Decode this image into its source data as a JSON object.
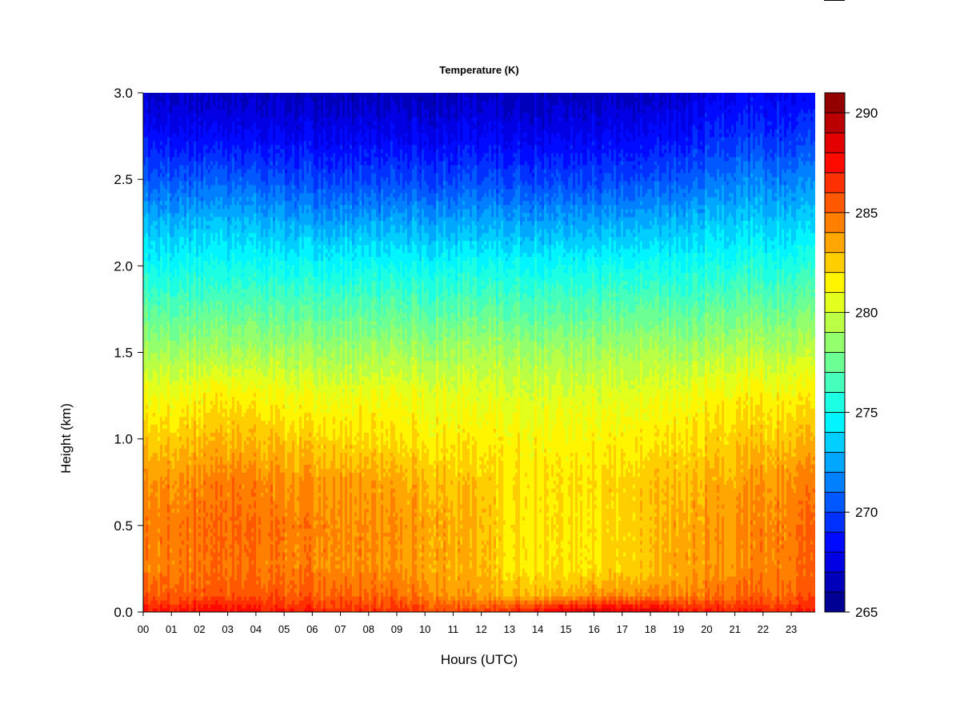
{
  "chart_data": {
    "type": "heatmap",
    "title": "Temperature (K)",
    "xlabel": "Hours (UTC)",
    "ylabel": "Height (km)",
    "x_ticks": [
      "00",
      "01",
      "02",
      "03",
      "04",
      "05",
      "06",
      "07",
      "08",
      "09",
      "10",
      "11",
      "12",
      "13",
      "14",
      "15",
      "16",
      "17",
      "18",
      "19",
      "20",
      "21",
      "22",
      "23"
    ],
    "xlim": [
      0,
      23.85
    ],
    "y_ticks": [
      "0.0",
      "0.5",
      "1.0",
      "1.5",
      "2.0",
      "2.5",
      "3.0"
    ],
    "ylim": [
      0,
      3.0
    ],
    "colorbar": {
      "ticks": [
        "265",
        "270",
        "275",
        "280",
        "285",
        "290"
      ],
      "range": [
        265,
        291
      ],
      "levels": [
        265,
        266,
        267,
        268,
        269,
        270,
        271,
        272,
        273,
        274,
        275,
        276,
        277,
        278,
        279,
        280,
        281,
        282,
        283,
        284,
        285,
        286,
        287,
        288,
        289,
        290,
        291
      ]
    },
    "colormap": "jet",
    "description_hours": [
      0,
      3,
      6,
      9,
      12,
      13,
      15,
      16,
      18,
      19,
      21,
      23.8
    ],
    "profiles": {
      "heights_km": [
        0.0,
        0.1,
        0.25,
        0.5,
        0.75,
        1.0,
        1.25,
        1.5,
        1.75,
        2.0,
        2.25,
        2.5,
        2.75,
        3.0
      ],
      "temps_K": [
        [
          287.5,
          285.5,
          284.5,
          284.5,
          284.0,
          282.5,
          281.0,
          279.0,
          277.0,
          275.0,
          273.0,
          270.5,
          268.5,
          267.0
        ],
        [
          287.5,
          285.5,
          284.8,
          285.0,
          284.5,
          283.0,
          281.5,
          279.0,
          277.0,
          275.0,
          273.0,
          270.5,
          268.0,
          266.5
        ],
        [
          287.0,
          285.5,
          284.5,
          284.5,
          284.0,
          282.5,
          281.0,
          279.0,
          277.0,
          275.0,
          272.5,
          270.0,
          268.0,
          266.5
        ],
        [
          286.5,
          285.0,
          284.0,
          284.0,
          283.5,
          282.0,
          281.0,
          279.0,
          277.0,
          275.0,
          272.5,
          270.0,
          268.0,
          266.5
        ],
        [
          286.0,
          283.5,
          283.0,
          283.0,
          282.5,
          281.5,
          280.5,
          279.0,
          277.0,
          275.0,
          272.5,
          270.0,
          268.0,
          266.5
        ],
        [
          287.0,
          283.0,
          282.0,
          282.0,
          282.0,
          281.5,
          280.5,
          279.0,
          277.0,
          275.0,
          272.5,
          270.0,
          268.0,
          266.5
        ],
        [
          288.5,
          283.5,
          282.0,
          282.0,
          282.0,
          281.5,
          280.5,
          279.0,
          277.0,
          275.0,
          272.5,
          270.0,
          268.0,
          266.5
        ],
        [
          289.0,
          284.0,
          282.0,
          282.0,
          282.0,
          281.5,
          280.5,
          279.0,
          277.0,
          275.0,
          272.5,
          270.0,
          268.0,
          266.5
        ],
        [
          288.5,
          284.0,
          282.5,
          282.5,
          282.5,
          281.5,
          280.5,
          279.0,
          277.0,
          275.0,
          272.5,
          270.0,
          268.0,
          266.5
        ],
        [
          287.5,
          284.5,
          283.5,
          283.5,
          283.0,
          282.0,
          281.0,
          279.0,
          277.0,
          275.0,
          273.0,
          270.5,
          268.5,
          267.0
        ],
        [
          287.0,
          285.0,
          284.0,
          284.0,
          283.5,
          282.5,
          281.5,
          279.5,
          277.5,
          275.5,
          273.5,
          271.5,
          269.5,
          268.0
        ],
        [
          287.0,
          285.5,
          285.0,
          285.0,
          284.5,
          283.0,
          281.5,
          279.5,
          277.5,
          275.5,
          273.5,
          271.5,
          269.5,
          268.0
        ]
      ]
    }
  }
}
